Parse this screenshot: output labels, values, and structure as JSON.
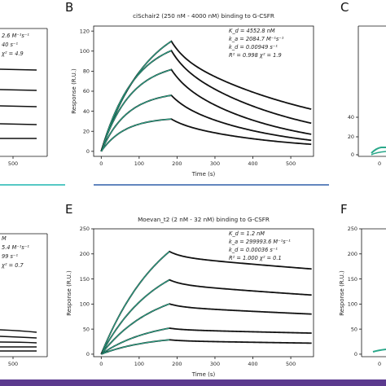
{
  "colors": {
    "data": "#111111",
    "fit": "#2aa88a",
    "divider_left": "#1fb6b0",
    "divider_mid": "#2f5fa8",
    "bottom_bar": "#5b3a8e"
  },
  "panel_letters": {
    "B": "B",
    "C": "C",
    "E": "E",
    "F": "F"
  },
  "chart_data": [
    {
      "id": "A_partial",
      "type": "line",
      "x_tick_labels": [
        "500"
      ],
      "annotations": [
        "2.6 M⁻¹s⁻¹",
        "40 s⁻¹",
        "χ² = 4.9"
      ],
      "series": [
        {
          "x": [
            0,
            620
          ],
          "y": [
            95,
            95
          ]
        },
        {
          "x": [
            0,
            620
          ],
          "y": [
            85,
            83
          ]
        },
        {
          "x": [
            0,
            620
          ],
          "y": [
            70,
            68
          ]
        },
        {
          "x": [
            0,
            620
          ],
          "y": [
            55,
            53
          ]
        },
        {
          "x": [
            0,
            620
          ],
          "y": [
            40,
            39
          ]
        }
      ]
    },
    {
      "id": "B",
      "type": "line",
      "title": "ciSchair2 (250 nM - 4000 nM) binding to G-CSFR",
      "xlabel": "Time (s)",
      "ylabel": "Response (R.U.)",
      "xlim": [
        -20,
        560
      ],
      "ylim": [
        -5,
        125
      ],
      "x_ticks": [
        0,
        100,
        200,
        300,
        400,
        500
      ],
      "y_ticks": [
        0,
        20,
        40,
        60,
        80,
        100,
        120
      ],
      "annotations": [
        "K_d = 4552.8 nM",
        "k_a = 2084.7 M⁻¹s⁻¹",
        "k_d = 0.00949 s⁻¹",
        "R² = 0.998  χ² = 1.9"
      ],
      "association_end": 185,
      "x_end": 555,
      "curves": [
        {
          "plateau": 140,
          "kobs": 0.0083,
          "off": 0.0095,
          "end": 42
        },
        {
          "plateau": 115,
          "kobs": 0.0112,
          "off": 0.0095,
          "end": 28
        },
        {
          "plateau": 90,
          "kobs": 0.0128,
          "off": 0.0095,
          "end": 17
        },
        {
          "plateau": 60,
          "kobs": 0.0145,
          "off": 0.0095,
          "end": 11
        },
        {
          "plateau": 34,
          "kobs": 0.016,
          "off": 0.0095,
          "end": 7
        }
      ]
    },
    {
      "id": "C_partial",
      "type": "line",
      "x_tick_labels": [
        "0"
      ],
      "y_tick_labels": [
        "40",
        "20",
        "0"
      ]
    },
    {
      "id": "D_partial",
      "type": "line",
      "x_tick_labels": [
        "500"
      ],
      "annotations": [
        "M",
        "5.4 M⁻¹s⁻¹",
        "99 s⁻¹",
        "χ² = 0.7"
      ]
    },
    {
      "id": "E",
      "type": "line",
      "title": "Moevan_t2 (2 nM - 32 nM) binding to G-CSFR",
      "xlabel": "Time (s)",
      "ylabel": "Response (R.U.)",
      "xlim": [
        -20,
        560
      ],
      "ylim": [
        -5,
        250
      ],
      "x_ticks": [
        0,
        100,
        200,
        300,
        400,
        500
      ],
      "y_ticks": [
        0,
        50,
        100,
        150,
        200,
        250
      ],
      "annotations": [
        "K_d = 1.2 nM",
        "k_a = 299993.6 M⁻¹s⁻¹",
        "k_d = 0.00036 s⁻¹",
        "R² = 1.000  χ² = 0.1"
      ],
      "association_end": 180,
      "x_end": 555,
      "curves": [
        {
          "plateau": 310,
          "kobs": 0.006,
          "off": 0.00055,
          "end": 170
        },
        {
          "plateau": 210,
          "kobs": 0.0068,
          "off": 0.00055,
          "end": 118
        },
        {
          "plateau": 140,
          "kobs": 0.007,
          "off": 0.00055,
          "end": 80
        },
        {
          "plateau": 70,
          "kobs": 0.0075,
          "off": 0.00055,
          "end": 42
        },
        {
          "plateau": 38,
          "kobs": 0.0078,
          "off": 0.00055,
          "end": 22
        }
      ]
    },
    {
      "id": "F_partial",
      "type": "line",
      "ylabel": "Response (R.U.)",
      "x_tick_labels": [
        "0"
      ],
      "y_tick_labels": [
        "250",
        "200",
        "150",
        "100",
        "50",
        "0"
      ]
    }
  ]
}
